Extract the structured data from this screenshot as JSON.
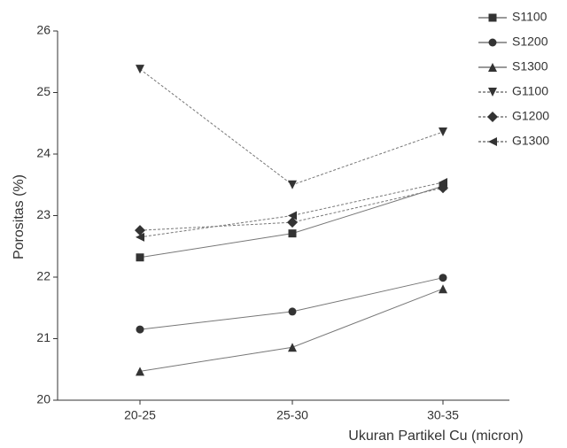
{
  "chart_data": {
    "type": "line",
    "x_label": "Ukuran Partikel Cu (micron)",
    "y_label": "Porositas (%)",
    "categories": [
      "20-25",
      "25-30",
      "30-35"
    ],
    "ylim": [
      20,
      26
    ],
    "yticks": [
      20,
      21,
      22,
      23,
      24,
      25,
      26
    ],
    "series": [
      {
        "name": "S1100",
        "color": "#333333",
        "marker": "square",
        "linestyle": "solid",
        "values": [
          22.32,
          22.71,
          23.48
        ]
      },
      {
        "name": "S1200",
        "color": "#333333",
        "marker": "circle",
        "linestyle": "solid",
        "values": [
          21.15,
          21.44,
          21.99
        ]
      },
      {
        "name": "S1300",
        "color": "#333333",
        "marker": "triangle-up",
        "linestyle": "solid",
        "values": [
          20.47,
          20.86,
          21.81
        ]
      },
      {
        "name": "G1100",
        "color": "#333333",
        "marker": "triangle-down",
        "linestyle": "dashed",
        "values": [
          25.38,
          23.5,
          24.36
        ]
      },
      {
        "name": "G1200",
        "color": "#333333",
        "marker": "diamond",
        "linestyle": "dashed",
        "values": [
          22.76,
          22.89,
          23.45
        ]
      },
      {
        "name": "G1300",
        "color": "#333333",
        "marker": "triangle-left",
        "linestyle": "dashed",
        "values": [
          22.65,
          23.0,
          23.54
        ]
      }
    ]
  }
}
